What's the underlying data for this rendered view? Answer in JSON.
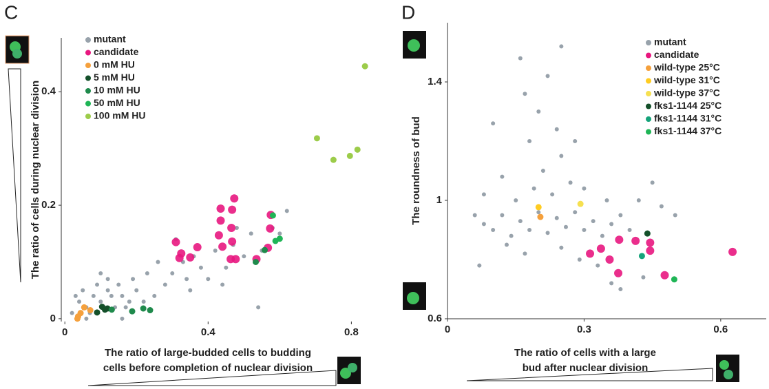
{
  "chart_data": [
    {
      "type": "scatter",
      "panel": "C",
      "xlabel": [
        "The ratio of large-budded cells to budding",
        "cells before completion of nuclear division"
      ],
      "ylabel": "The ratio of cells  during nuclear division",
      "xlim": [
        -0.01,
        0.88
      ],
      "ylim": [
        -0.005,
        0.495
      ],
      "xticks": [
        0,
        0.4,
        0.8
      ],
      "yticks": [
        0,
        0.2,
        0.4
      ],
      "series": [
        {
          "name": "mutant",
          "color": "#98a2ab",
          "x": [
            0.02,
            0.04,
            0.06,
            0.08,
            0.1,
            0.12,
            0.14,
            0.16,
            0.18,
            0.05,
            0.07,
            0.09,
            0.11,
            0.13,
            0.15,
            0.17,
            0.2,
            0.03,
            0.22,
            0.25,
            0.12,
            0.1,
            0.19,
            0.28,
            0.3,
            0.33,
            0.35,
            0.38,
            0.4,
            0.42,
            0.45,
            0.47,
            0.5,
            0.52,
            0.55,
            0.58,
            0.6,
            0.62,
            0.54,
            0.26,
            0.31,
            0.36,
            0.44,
            0.48,
            0.06,
            0.16,
            0.23,
            0.34
          ],
          "y": [
            0.01,
            0.03,
            0.02,
            0.04,
            0.03,
            0.05,
            0.02,
            0.04,
            0.03,
            0.05,
            0.01,
            0.06,
            0.02,
            0.04,
            0.06,
            0.02,
            0.05,
            0.04,
            0.03,
            0.04,
            0.07,
            0.08,
            0.07,
            0.06,
            0.08,
            0.1,
            0.05,
            0.09,
            0.07,
            0.12,
            0.09,
            0.13,
            0.11,
            0.15,
            0.12,
            0.16,
            0.15,
            0.19,
            0.02,
            0.1,
            0.14,
            0.11,
            0.06,
            0.16,
            0.0,
            0.0,
            0.08,
            0.07
          ]
        },
        {
          "name": "candidate",
          "color": "#e8177f",
          "x": [
            0.31,
            0.325,
            0.32,
            0.35,
            0.37,
            0.435,
            0.435,
            0.43,
            0.44,
            0.473,
            0.467,
            0.465,
            0.467,
            0.477,
            0.463,
            0.535,
            0.567,
            0.573,
            0.575
          ],
          "y": [
            0.135,
            0.115,
            0.107,
            0.108,
            0.126,
            0.194,
            0.173,
            0.147,
            0.127,
            0.212,
            0.192,
            0.16,
            0.136,
            0.105,
            0.105,
            0.105,
            0.125,
            0.159,
            0.183
          ]
        },
        {
          "name": "0 mM HU",
          "color": "#f5a03c",
          "x": [
            0.037,
            0.035,
            0.054,
            0.071,
            0.044
          ],
          "y": [
            0.004,
            0,
            0.02,
            0.015,
            0.01
          ]
        },
        {
          "name": "5 mM HU",
          "color": "#14502a",
          "x": [
            0.09,
            0.104,
            0.112,
            0.119
          ],
          "y": [
            0.011,
            0.021,
            0.016,
            0.018
          ]
        },
        {
          "name": "10 mM HU",
          "color": "#1f8a4c",
          "x": [
            0.131,
            0.188,
            0.219,
            0.238,
            0.533,
            0.558
          ],
          "y": [
            0.016,
            0.013,
            0.018,
            0.015,
            0.1,
            0.121
          ]
        },
        {
          "name": "50 mM HU",
          "color": "#1fb556",
          "x": [
            0.581,
            0.588,
            0.6
          ],
          "y": [
            0.182,
            0.137,
            0.141
          ]
        },
        {
          "name": "100 mM HU",
          "color": "#9ccc4a",
          "x": [
            0.838,
            0.704,
            0.75,
            0.796,
            0.817
          ],
          "y": [
            0.445,
            0.318,
            0.28,
            0.287,
            0.298
          ]
        }
      ]
    },
    {
      "type": "scatter",
      "panel": "D",
      "xlabel": [
        "The ratio of cells with a large",
        "bud after nuclear division"
      ],
      "ylabel": "The roundness of bud",
      "xlim": [
        0,
        0.7
      ],
      "ylim": [
        0.6,
        1.6
      ],
      "xticks": [
        0,
        0.3,
        0.6
      ],
      "yticks": [
        0.6,
        1,
        1.4
      ],
      "series": [
        {
          "name": "mutant",
          "color": "#98a2ab",
          "x": [
            0.06,
            0.08,
            0.1,
            0.12,
            0.14,
            0.16,
            0.18,
            0.2,
            0.22,
            0.24,
            0.26,
            0.28,
            0.3,
            0.32,
            0.34,
            0.36,
            0.38,
            0.4,
            0.15,
            0.19,
            0.23,
            0.27,
            0.21,
            0.25,
            0.18,
            0.24,
            0.2,
            0.17,
            0.22,
            0.16,
            0.25,
            0.1,
            0.13,
            0.17,
            0.25,
            0.33,
            0.42,
            0.45,
            0.47,
            0.5,
            0.12,
            0.08,
            0.3,
            0.35,
            0.29,
            0.36,
            0.38,
            0.43,
            0.07,
            0.28
          ],
          "y": [
            0.95,
            0.92,
            0.9,
            0.95,
            0.88,
            0.93,
            0.9,
            0.96,
            0.89,
            0.94,
            0.91,
            0.96,
            0.9,
            0.93,
            0.88,
            0.92,
            0.95,
            0.9,
            1.0,
            1.04,
            1.02,
            1.06,
            1.1,
            1.15,
            1.2,
            1.24,
            1.3,
            1.36,
            1.42,
            1.48,
            1.52,
            1.26,
            0.85,
            0.82,
            0.84,
            0.78,
            1.0,
            1.06,
            0.98,
            0.95,
            1.08,
            1.02,
            1.04,
            1.0,
            0.8,
            0.72,
            0.7,
            0.74,
            0.78,
            1.2
          ]
        },
        {
          "name": "candidate",
          "color": "#e8177f",
          "x": [
            0.313,
            0.337,
            0.356,
            0.377,
            0.375,
            0.413,
            0.445,
            0.445,
            0.477,
            0.626
          ],
          "y": [
            0.82,
            0.837,
            0.8,
            0.867,
            0.754,
            0.863,
            0.857,
            0.83,
            0.747,
            0.826
          ]
        },
        {
          "name": "wild-type 25°C",
          "color": "#f5a03c",
          "x": [
            0.204
          ],
          "y": [
            0.944
          ]
        },
        {
          "name": "wild-type 31°C",
          "color": "#ffcc22",
          "x": [
            0.2
          ],
          "y": [
            0.977
          ]
        },
        {
          "name": "wild-type 37°C",
          "color": "#f6e050",
          "x": [
            0.292
          ],
          "y": [
            0.988
          ]
        },
        {
          "name": "fks1-1144 25°C",
          "color": "#14502a",
          "x": [
            0.439
          ],
          "y": [
            0.888
          ]
        },
        {
          "name": "fks1-1144 31°C",
          "color": "#15a37a",
          "x": [
            0.427
          ],
          "y": [
            0.812
          ]
        },
        {
          "name": "fks1-1144 37°C",
          "color": "#1fb556",
          "x": [
            0.498
          ],
          "y": [
            0.733
          ]
        }
      ]
    }
  ]
}
